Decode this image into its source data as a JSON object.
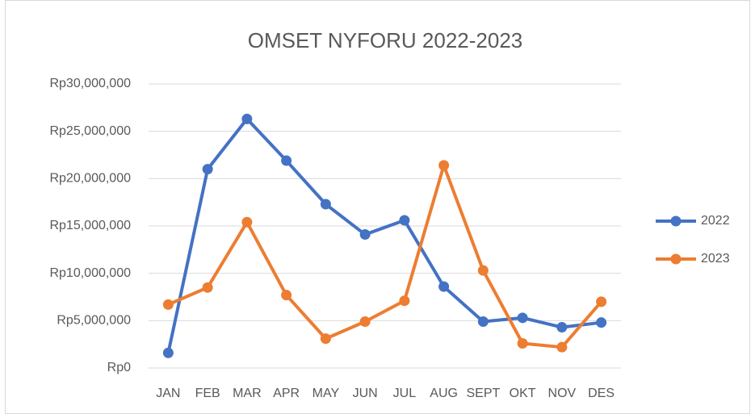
{
  "chart_data": {
    "type": "line",
    "title": "OMSET NYFORU 2022-2023",
    "categories": [
      "JAN",
      "FEB",
      "MAR",
      "APR",
      "MAY",
      "JUN",
      "JUL",
      "AUG",
      "SEPT",
      "OKT",
      "NOV",
      "DES"
    ],
    "series": [
      {
        "name": "2022",
        "color": "#4472c4",
        "values": [
          1600000,
          21000000,
          26300000,
          21900000,
          17300000,
          14100000,
          15600000,
          8600000,
          4900000,
          5300000,
          4300000,
          4800000
        ]
      },
      {
        "name": "2023",
        "color": "#ed7d31",
        "values": [
          6700000,
          8500000,
          15400000,
          7700000,
          3100000,
          4900000,
          7100000,
          21400000,
          10300000,
          2600000,
          2200000,
          7000000
        ]
      }
    ],
    "ylim": [
      0,
      30000000
    ],
    "yticks": [
      {
        "value": 0,
        "label": "Rp0"
      },
      {
        "value": 5000000,
        "label": "Rp5,000,000"
      },
      {
        "value": 10000000,
        "label": "Rp10,000,000"
      },
      {
        "value": 15000000,
        "label": "Rp15,000,000"
      },
      {
        "value": 20000000,
        "label": "Rp20,000,000"
      },
      {
        "value": 25000000,
        "label": "Rp25,000,000"
      },
      {
        "value": 30000000,
        "label": "Rp30,000,000"
      }
    ],
    "grid": true,
    "legend": "right"
  }
}
